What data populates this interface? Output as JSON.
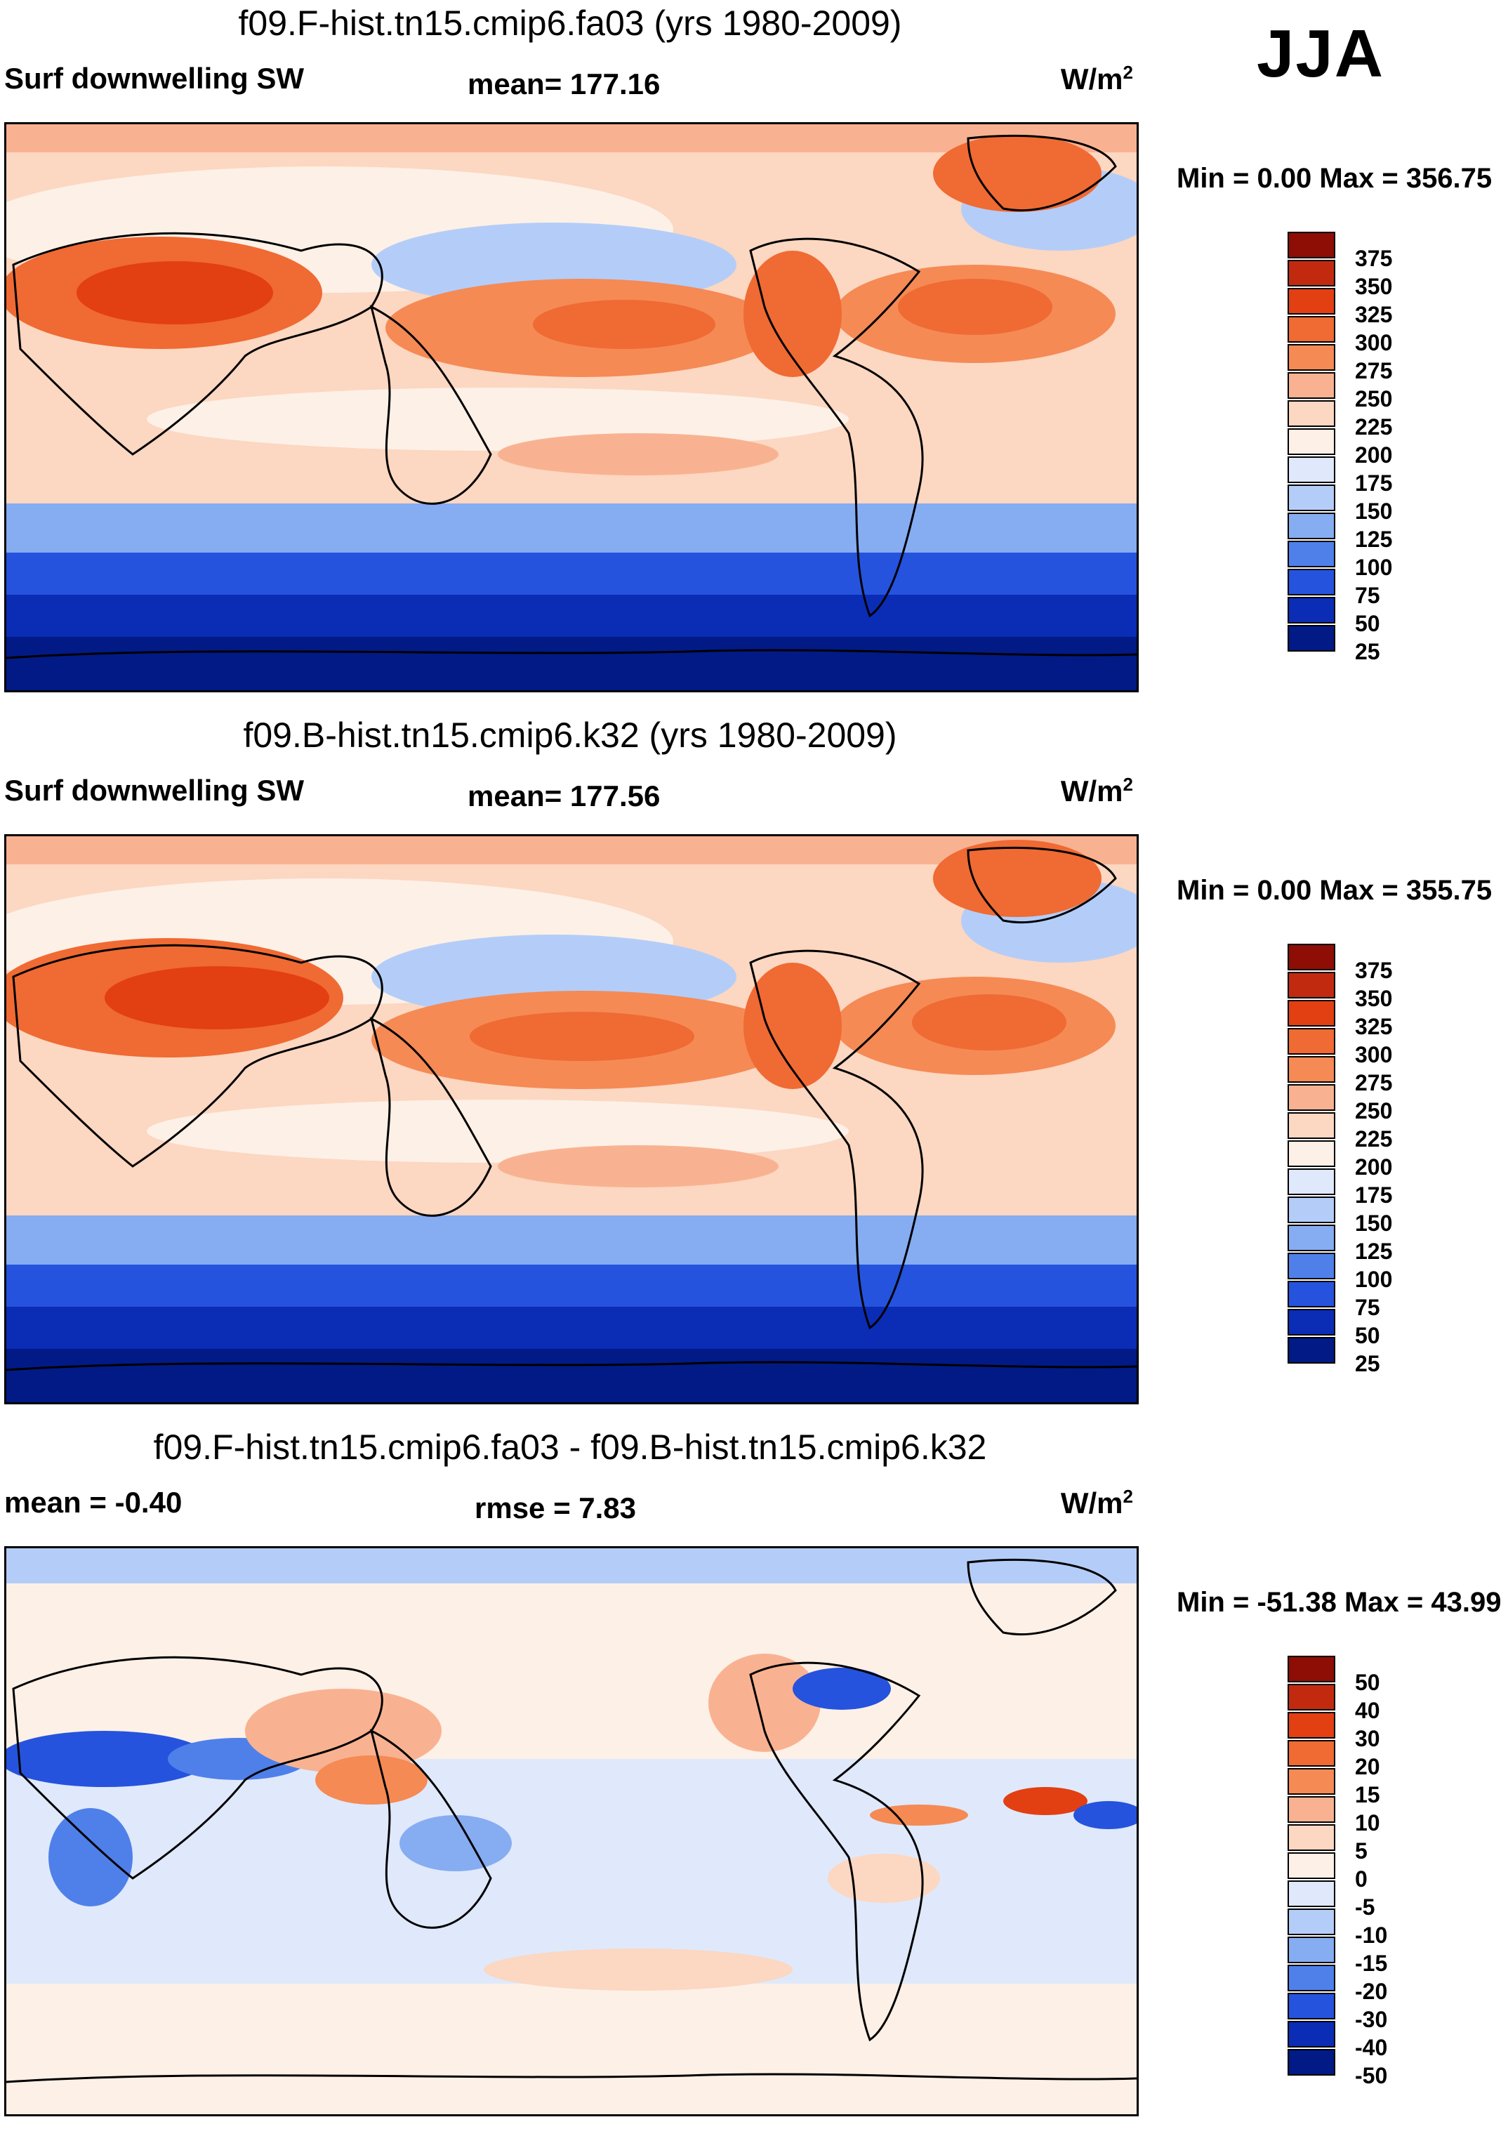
{
  "season": "JJA",
  "panels": [
    {
      "title": "f09.F-hist.tn15.cmip6.fa03 (yrs 1980-2009)",
      "left_label": "Surf downwelling SW",
      "mid_label": "mean= 177.16",
      "unit": "W/m",
      "unit_exp": "2",
      "minmax": "Min =   0.00 Max = 356.75"
    },
    {
      "title": "f09.B-hist.tn15.cmip6.k32 (yrs 1980-2009)",
      "left_label": "Surf downwelling SW",
      "mid_label": "mean= 177.56",
      "unit": "W/m",
      "unit_exp": "2",
      "minmax": "Min =   0.00 Max = 355.75"
    },
    {
      "title": "f09.F-hist.tn15.cmip6.fa03 - f09.B-hist.tn15.cmip6.k32",
      "left_label": "mean =  -0.40",
      "mid_label": "rmse =   7.83",
      "unit": "W/m",
      "unit_exp": "2",
      "minmax": "Min = -51.38 Max =  43.99"
    }
  ],
  "colorbars": {
    "absolute": {
      "labels": [
        "375",
        "350",
        "325",
        "300",
        "275",
        "250",
        "225",
        "200",
        "175",
        "150",
        "125",
        "100",
        "75",
        "50",
        "25"
      ],
      "colors": [
        "#8e0d05",
        "#c22a0f",
        "#e23f12",
        "#f06a33",
        "#f58a55",
        "#f9b291",
        "#fcd7c1",
        "#fdf0e7",
        "#dfe9fb",
        "#b4cdf8",
        "#86acf2",
        "#4f80ea",
        "#2553dd",
        "#0b2cb5",
        "#021a85"
      ]
    },
    "difference": {
      "labels": [
        "50",
        "40",
        "30",
        "20",
        "15",
        "10",
        "5",
        "0",
        "-5",
        "-10",
        "-15",
        "-20",
        "-30",
        "-40",
        "-50"
      ],
      "colors": [
        "#8e0d05",
        "#c22a0f",
        "#e23f12",
        "#f06a33",
        "#f58a55",
        "#f9b291",
        "#fcd7c1",
        "#fdf0e7",
        "#dfe9fb",
        "#b4cdf8",
        "#86acf2",
        "#4f80ea",
        "#2553dd",
        "#0b2cb5",
        "#021a85"
      ]
    }
  }
}
